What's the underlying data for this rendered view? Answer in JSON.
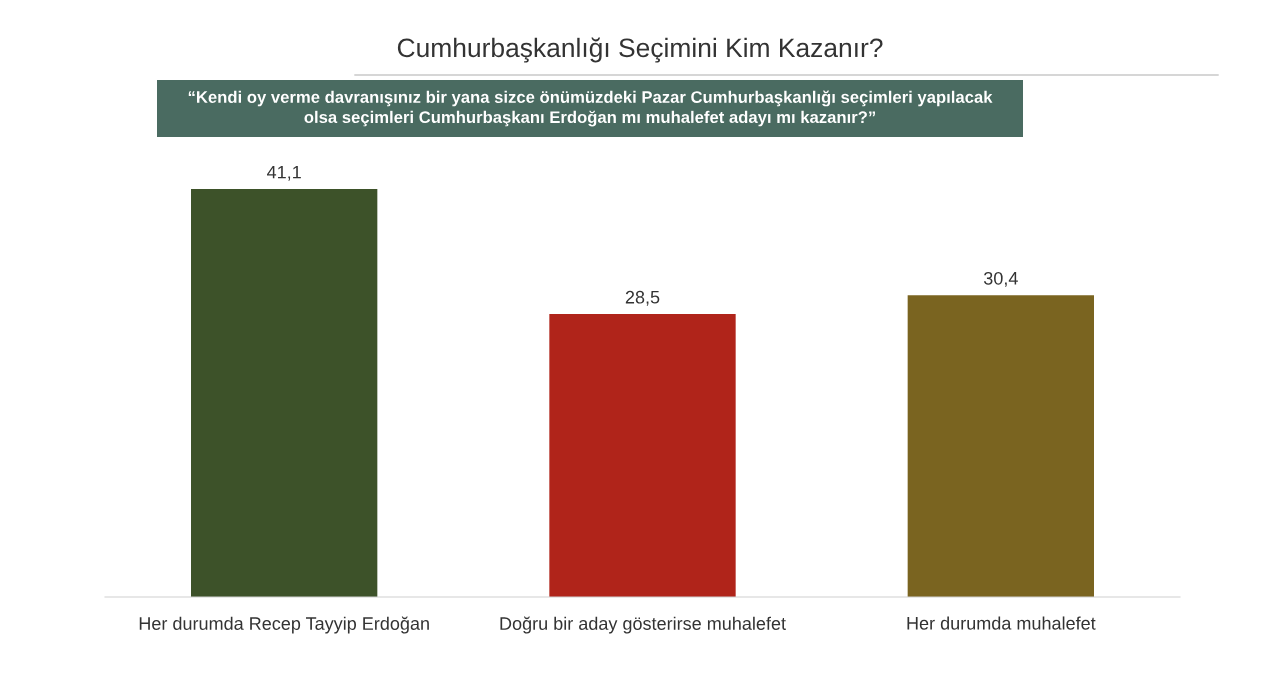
{
  "chart_data": {
    "type": "bar",
    "title": "Cumhurbaşkanlığı Seçimini Kim Kazanır?",
    "subtitle": "“Kendi oy verme davranışınız bir yana sizce önümüzdeki Pazar Cumhurbaşkanlığı seçimleri yapılacak\nolsa seçimleri Cumhurbaşkanı Erdoğan mı muhalefet adayı mı kazanır?”",
    "categories": [
      "Her durumda Recep Tayyip Erdoğan",
      "Doğru bir aday gösterirse muhalefet",
      "Her durumda muhalefet"
    ],
    "values": [
      41.1,
      28.5,
      30.4
    ],
    "colors": [
      "#3d5229",
      "#b0241a",
      "#7a6420"
    ],
    "value_labels": [
      "41,1",
      "28,5",
      "30,4"
    ],
    "grid": false,
    "legend": false
  }
}
